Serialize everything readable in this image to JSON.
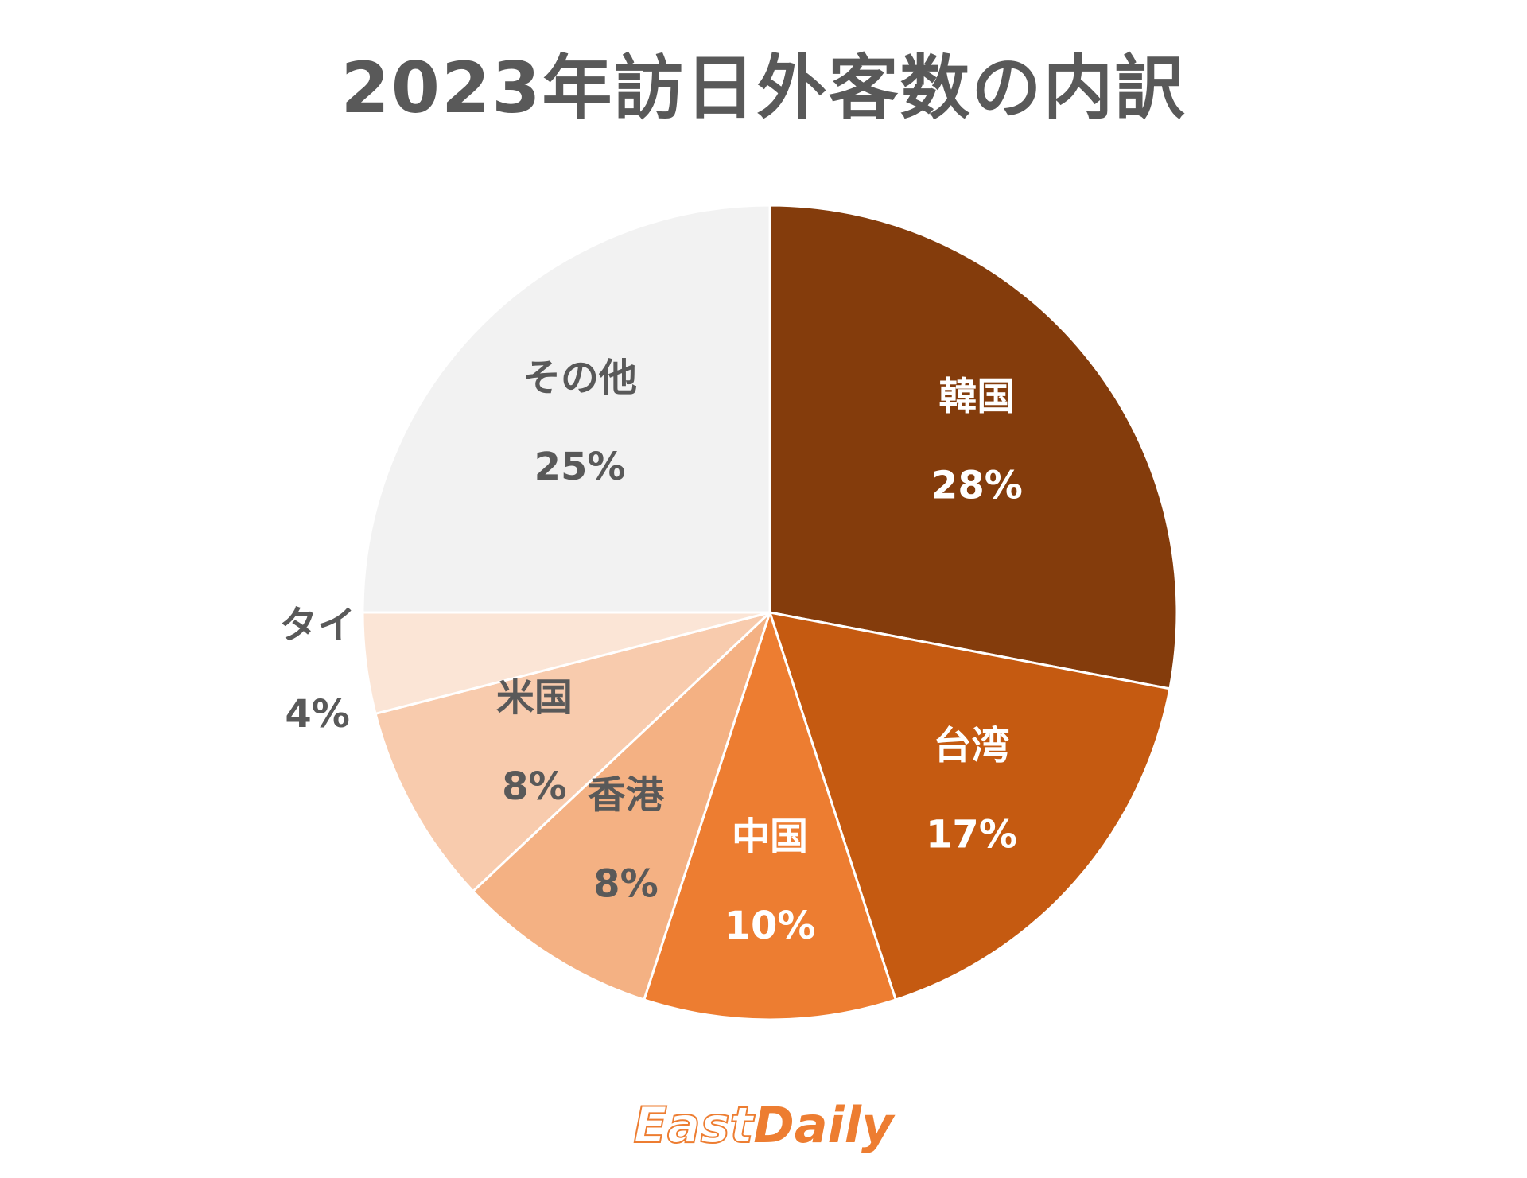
{
  "chart_data": {
    "type": "pie",
    "title": "2023年訪日外客数の内訳",
    "slices": [
      {
        "label": "韓国",
        "value": 28,
        "value_label": "28%",
        "color": "#843C0C",
        "text_color": "#FFFFFF"
      },
      {
        "label": "台湾",
        "value": 17,
        "value_label": "17%",
        "color": "#C55A11",
        "text_color": "#FFFFFF"
      },
      {
        "label": "中国",
        "value": 10,
        "value_label": "10%",
        "color": "#ED7D31",
        "text_color": "#FFFFFF"
      },
      {
        "label": "香港",
        "value": 8,
        "value_label": "8%",
        "color": "#F4B183",
        "text_color": "#595959"
      },
      {
        "label": "米国",
        "value": 8,
        "value_label": "8%",
        "color": "#F8CBAD",
        "text_color": "#595959"
      },
      {
        "label": "タイ",
        "value": 4,
        "value_label": "4%",
        "color": "#FBE5D6",
        "text_color": "#595959"
      },
      {
        "label": "その他",
        "value": 25,
        "value_label": "25%",
        "color": "#F2F2F2",
        "text_color": "#595959"
      }
    ],
    "start_angle": "12 o'clock",
    "direction": "clockwise",
    "legend": "none"
  },
  "logo": {
    "part1": "East",
    "part2": "Daily"
  }
}
